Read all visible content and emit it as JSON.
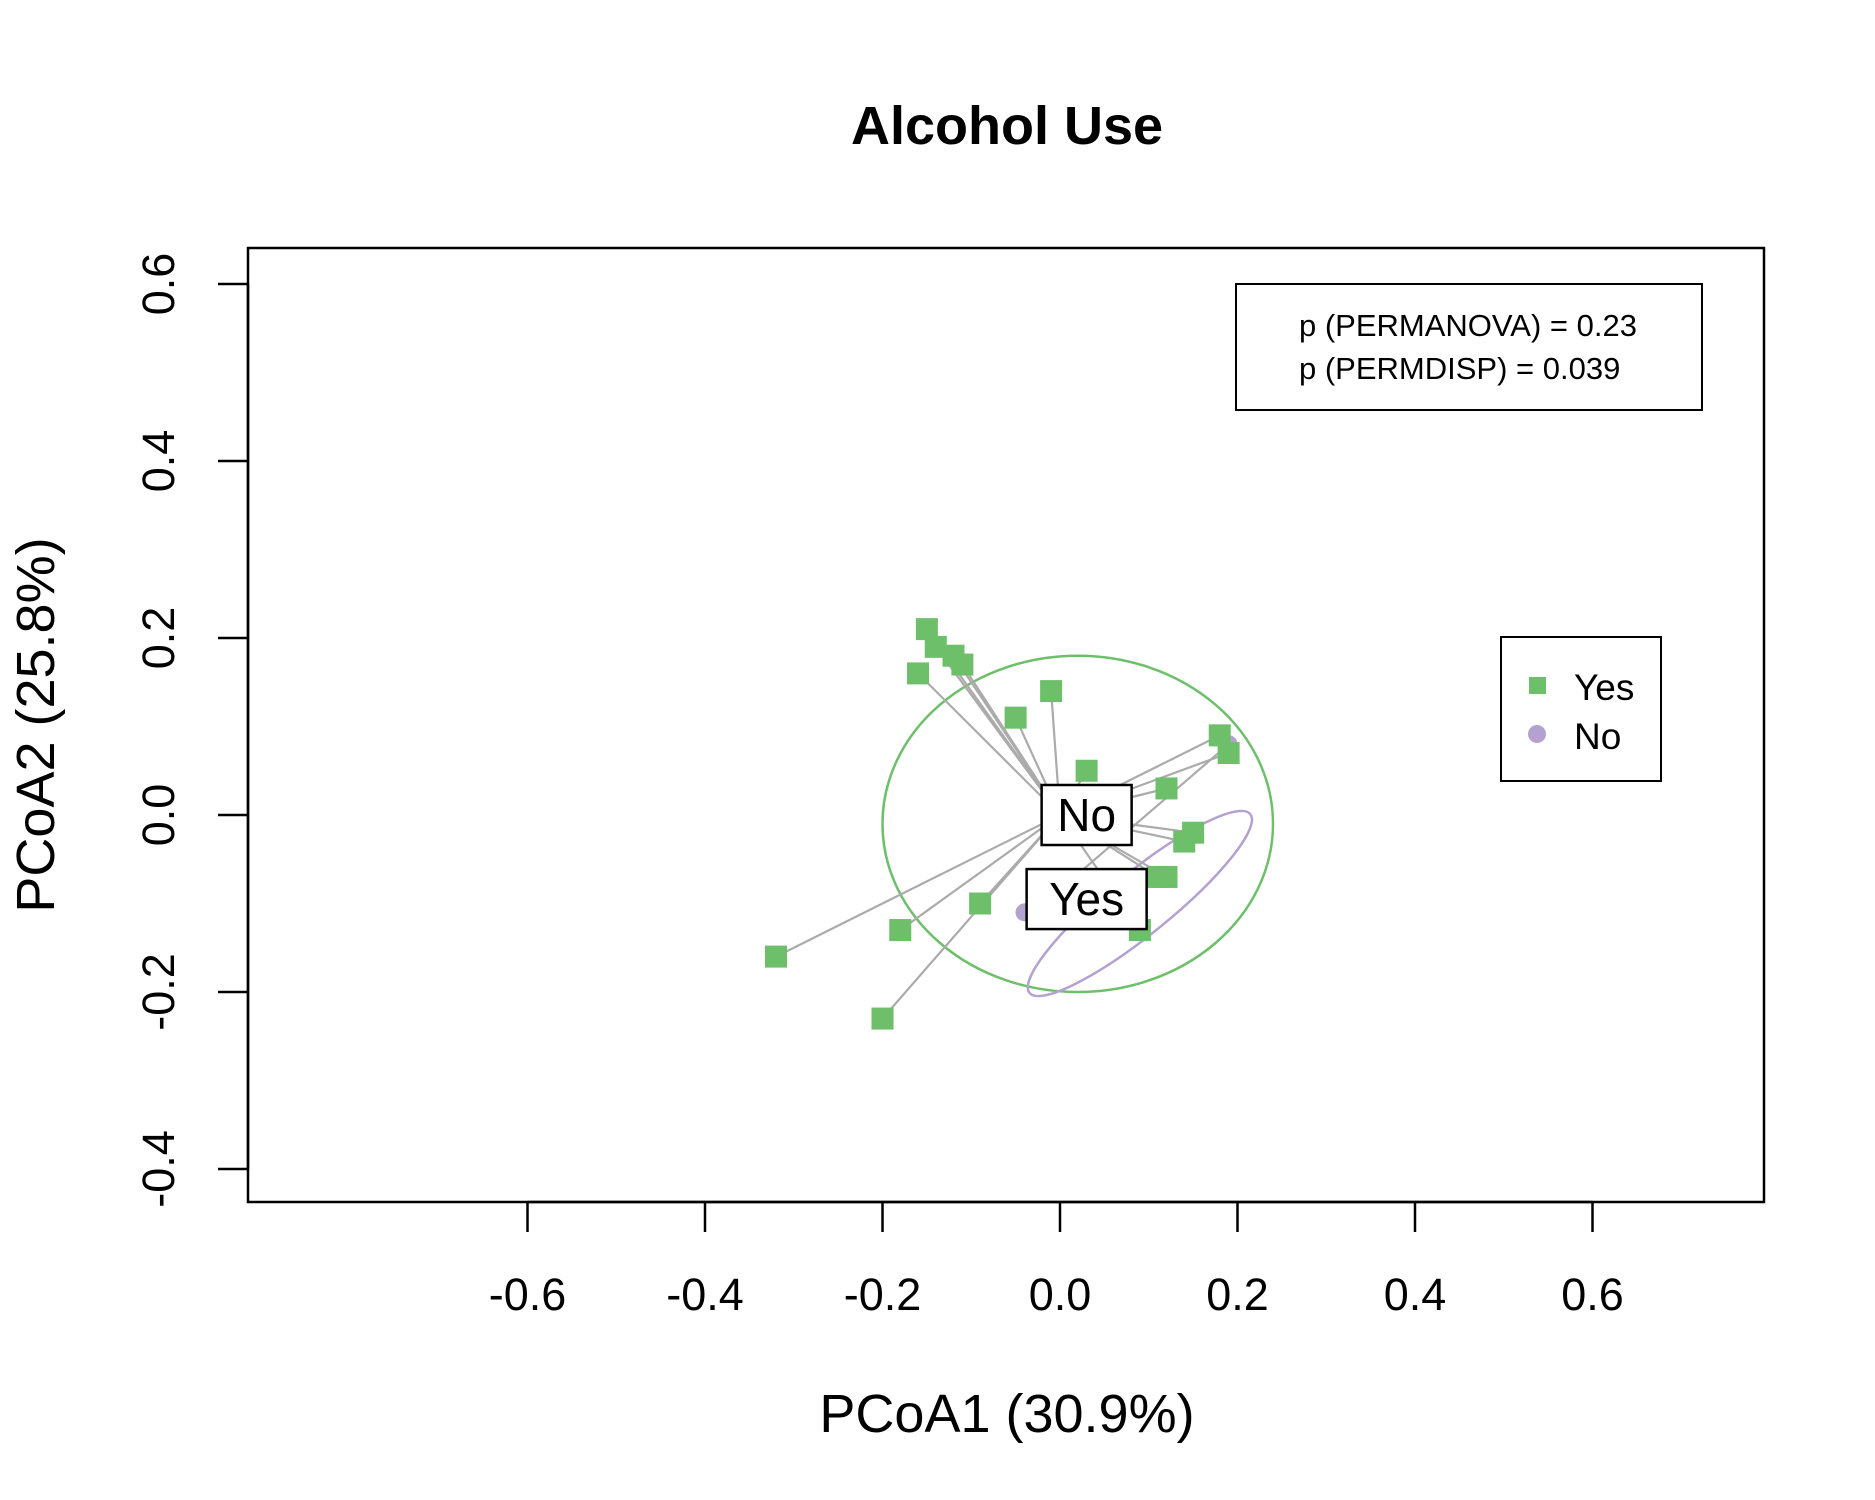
{
  "chart_data": {
    "type": "scatter",
    "title": "Alcohol Use",
    "xlabel": "PCoA1 (30.9%)",
    "ylabel": "PCoA2 (25.8%)",
    "xlim": [
      -0.6,
      0.6
    ],
    "ylim": [
      -0.4,
      0.6
    ],
    "xticks": [
      -0.6,
      -0.4,
      -0.2,
      0.0,
      0.2,
      0.4,
      0.6
    ],
    "xtick_labels": [
      "-0.6",
      "-0.4",
      "-0.2",
      "0.0",
      "0.2",
      "0.4",
      "0.6"
    ],
    "yticks": [
      -0.4,
      -0.2,
      0.0,
      0.2,
      0.4,
      0.6
    ],
    "ytick_labels": [
      "-0.4",
      "-0.2",
      "0.0",
      "0.2",
      "0.4",
      "0.6"
    ],
    "grid": false,
    "legend_position": "right",
    "stats_box": {
      "position": "top-right",
      "lines": [
        "p (PERMANOVA) = 0.23",
        "p (PERMDISP) = 0.039"
      ]
    },
    "series": [
      {
        "name": "Yes",
        "marker": "square",
        "color": "#6dbf6a",
        "centroid": [
          0.0,
          0.0
        ],
        "points": [
          [
            -0.15,
            0.21
          ],
          [
            -0.14,
            0.19
          ],
          [
            -0.16,
            0.16
          ],
          [
            -0.12,
            0.18
          ],
          [
            -0.11,
            0.17
          ],
          [
            -0.05,
            0.11
          ],
          [
            -0.01,
            0.14
          ],
          [
            0.03,
            0.05
          ],
          [
            0.18,
            0.09
          ],
          [
            0.19,
            0.07
          ],
          [
            0.12,
            0.03
          ],
          [
            0.15,
            -0.02
          ],
          [
            0.14,
            -0.03
          ],
          [
            0.11,
            -0.07
          ],
          [
            0.12,
            -0.07
          ],
          [
            0.09,
            -0.13
          ],
          [
            -0.09,
            -0.1
          ],
          [
            -0.18,
            -0.13
          ],
          [
            -0.32,
            -0.16
          ],
          [
            -0.2,
            -0.23
          ]
        ],
        "ellipse": {
          "center": [
            0.02,
            -0.01
          ],
          "rx": 0.22,
          "ry": 0.19,
          "rotation_deg": 0
        }
      },
      {
        "name": "No",
        "marker": "circle",
        "color": "#b3a2cf",
        "centroid": [
          -0.03,
          -0.11
        ],
        "points": [
          [
            -0.04,
            -0.11
          ],
          [
            0.19,
            0.08
          ]
        ],
        "ellipse": {
          "center": [
            0.09,
            -0.1
          ],
          "rx": 0.16,
          "ry": 0.035,
          "rotation_deg": -39
        }
      }
    ],
    "centroid_labels": [
      {
        "text": "No",
        "at": [
          0.03,
          0.0
        ]
      },
      {
        "text": "Yes",
        "at": [
          0.03,
          -0.095
        ]
      }
    ],
    "spoke_color": "#ababab"
  }
}
